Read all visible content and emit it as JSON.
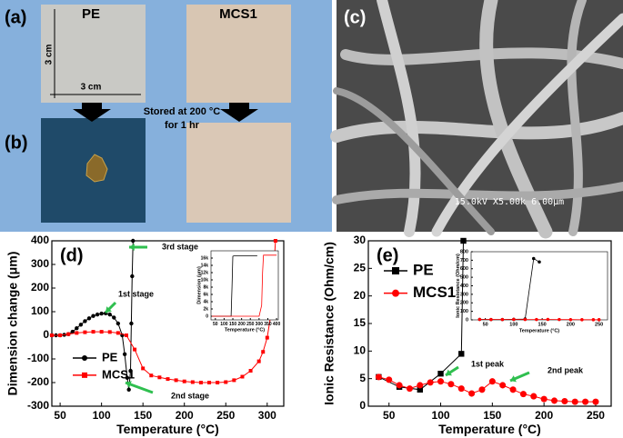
{
  "panels": {
    "a_label": "(a)",
    "b_label": "(b)",
    "c_label": "(c)",
    "pe_label": "PE",
    "mcs1_label": "MCS1",
    "width_label": "3 cm",
    "height_label": "3 cm",
    "stored_line1": "Stored at 200 °C",
    "stored_line2": "for 1 hr",
    "sem_caption": "15.0kV X5.00k 6.00μm"
  },
  "chart_data": [
    {
      "type": "line",
      "label": "(d)",
      "x_label": "Temperature (°C)",
      "y_label": "Dimension change (μm)",
      "xlim": [
        40,
        320
      ],
      "xticks": [
        50,
        100,
        150,
        200,
        250,
        300
      ],
      "ylim": [
        -300,
        400
      ],
      "yticks": [
        -300,
        -200,
        -100,
        0,
        100,
        200,
        300,
        400
      ],
      "legend": "lower left",
      "annotations": [
        "1st stage",
        "2nd stage",
        "3rd stage"
      ],
      "series": [
        {
          "name": "PE",
          "color": "#000000",
          "marker": "circle",
          "x": [
            40,
            45,
            50,
            55,
            60,
            65,
            70,
            75,
            80,
            85,
            90,
            95,
            100,
            105,
            110,
            115,
            120,
            125,
            128,
            131,
            133,
            135,
            136,
            137,
            138
          ],
          "values": [
            0,
            0,
            0,
            2,
            5,
            15,
            30,
            45,
            60,
            72,
            82,
            88,
            92,
            93,
            88,
            75,
            50,
            0,
            -80,
            -180,
            -230,
            -150,
            50,
            250,
            400
          ]
        },
        {
          "name": "MCS1",
          "color": "#ff0000",
          "marker": "square",
          "x": [
            40,
            50,
            60,
            70,
            80,
            90,
            100,
            110,
            120,
            130,
            140,
            150,
            160,
            170,
            180,
            190,
            200,
            210,
            220,
            230,
            240,
            250,
            260,
            270,
            280,
            290,
            295,
            300,
            305,
            310
          ],
          "values": [
            0,
            0,
            5,
            10,
            13,
            15,
            15,
            14,
            10,
            0,
            -60,
            -140,
            -170,
            -178,
            -185,
            -190,
            -195,
            -198,
            -200,
            -200,
            -200,
            -198,
            -190,
            -175,
            -150,
            -110,
            -70,
            -10,
            100,
            400
          ]
        }
      ]
    },
    {
      "type": "line",
      "x_label": "Temperature (°C)",
      "y_label": "Dimension (μm)",
      "xlim": [
        25,
        410
      ],
      "xticks": [
        50,
        100,
        150,
        200,
        250,
        300,
        350,
        400
      ],
      "ylim": [
        -1000,
        18000
      ],
      "yticks": [
        0,
        {
          "value": 2000,
          "label": "2k"
        },
        {
          "value": 4000,
          "label": "4k"
        },
        {
          "value": 6000,
          "label": "6k"
        },
        {
          "value": 8000,
          "label": "8k"
        },
        {
          "value": 10000,
          "label": "10k"
        },
        {
          "value": 12000,
          "label": "12k"
        },
        {
          "value": 14000,
          "label": "14k"
        },
        {
          "value": 16000,
          "label": "16k"
        }
      ],
      "series": [
        {
          "color": "#000000",
          "x": [
            30,
            60,
            100,
            140,
            145,
            150,
            155,
            200,
            250,
            290
          ],
          "values": [
            0,
            0,
            0,
            0,
            8000,
            16500,
            16600,
            16600,
            16600,
            16600
          ]
        },
        {
          "color": "#ff0000",
          "x": [
            30,
            100,
            200,
            300,
            315,
            320,
            325,
            350,
            400
          ],
          "values": [
            0,
            0,
            0,
            0,
            3000,
            12000,
            16800,
            16800,
            16800
          ]
        }
      ]
    },
    {
      "type": "line",
      "label": "(e)",
      "x_label": "Temperature (°C)",
      "y_label": "Ionic Resistance (Ohm/cm)",
      "xlim": [
        30,
        265
      ],
      "xticks": [
        50,
        100,
        150,
        200,
        250
      ],
      "ylim": [
        0,
        30
      ],
      "yticks": [
        0,
        5,
        10,
        15,
        20,
        25,
        30
      ],
      "legend": "upper left",
      "annotations": [
        "1st peak",
        "2nd peak"
      ],
      "series": [
        {
          "name": "PE",
          "color": "#000000",
          "marker": "square",
          "x": [
            40,
            60,
            80,
            100,
            120,
            122
          ],
          "values": [
            5.3,
            3.5,
            3,
            5.9,
            9.5,
            30
          ]
        },
        {
          "name": "MCS1",
          "color": "#ff0000",
          "marker": "circle",
          "x": [
            40,
            50,
            60,
            70,
            80,
            90,
            100,
            110,
            120,
            130,
            140,
            150,
            160,
            170,
            180,
            190,
            200,
            210,
            220,
            230,
            240,
            250
          ],
          "values": [
            5.3,
            4.8,
            3.8,
            3.2,
            3.8,
            4.3,
            4.5,
            4,
            3.2,
            2.3,
            3,
            4.5,
            3.8,
            3,
            2.2,
            1.8,
            1.3,
            1,
            0.9,
            0.8,
            0.8,
            0.8
          ]
        }
      ]
    },
    {
      "type": "line",
      "x_label": "Temperature (°C)",
      "y_label": "Ionic Resistance (Ohm/cm)",
      "xlim": [
        25,
        265
      ],
      "xticks": [
        50,
        100,
        150,
        200,
        250
      ],
      "ylim": [
        0,
        800
      ],
      "yticks": [
        0,
        100,
        200,
        300,
        400,
        500,
        600,
        700,
        800
      ],
      "series": [
        {
          "color": "#000000",
          "x": [
            40,
            60,
            80,
            100,
            120,
            135,
            145
          ],
          "values": [
            5,
            4,
            4,
            6,
            10,
            720,
            680
          ]
        },
        {
          "color": "#ff0000",
          "x": [
            40,
            60,
            80,
            100,
            120,
            140,
            160,
            180,
            200,
            220,
            240,
            250
          ],
          "values": [
            5,
            4,
            4,
            5,
            4,
            4,
            5,
            4,
            3,
            2,
            2,
            2
          ]
        }
      ]
    }
  ]
}
